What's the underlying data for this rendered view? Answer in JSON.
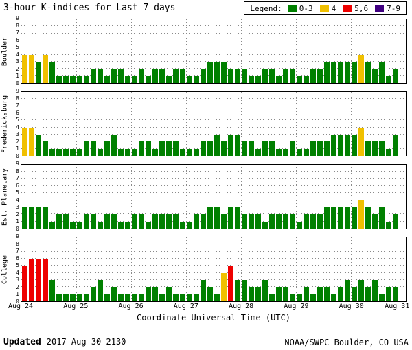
{
  "title": "3-hour K-indices for Last 7 days",
  "legend": {
    "label": "Legend:",
    "items": [
      {
        "label": "0-3",
        "color": "#008000"
      },
      {
        "label": "4",
        "color": "#F0C000"
      },
      {
        "label": "5,6",
        "color": "#EE0000"
      },
      {
        "label": "7-9",
        "color": "#400080"
      }
    ]
  },
  "y_axis": {
    "min": 0,
    "max": 9
  },
  "x_axis": {
    "title": "Coordinate Universal Time (UTC)",
    "tick_labels": [
      "Aug 24",
      "Aug 25",
      "Aug 26",
      "Aug 27",
      "Aug 28",
      "Aug 29",
      "Aug 30",
      "Aug 31"
    ]
  },
  "footer": {
    "updated_label": "Updated",
    "updated_value": "2017 Aug 30 2130",
    "credit": "NOAA/SWPC Boulder, CO USA"
  },
  "chart_data": {
    "type": "bar",
    "title": "3-hour K-indices for Last 7 days",
    "xlabel": "Coordinate Universal Time (UTC)",
    "ylabel": "",
    "ylim": [
      0,
      9
    ],
    "grid": "dotted",
    "legend_position": "top-right",
    "days": 7,
    "bins_per_day": 8,
    "bin_hours": 3,
    "x_start": "Aug 24",
    "x_end": "Aug 31",
    "level_colors": {
      "green": "#008000",
      "yellow": "#F0C000",
      "red": "#EE0000",
      "purple": "#400080"
    },
    "level_bins": {
      "green": "0-3",
      "yellow": "4",
      "red": "5,6",
      "purple": "7-9"
    },
    "panels": [
      {
        "station": "Boulder",
        "values": [
          4,
          4,
          3,
          4,
          3,
          1,
          1,
          1,
          1,
          1,
          2,
          2,
          1,
          2,
          2,
          1,
          1,
          2,
          1,
          2,
          2,
          1,
          2,
          2,
          1,
          1,
          2,
          3,
          3,
          3,
          2,
          2,
          2,
          1,
          1,
          2,
          2,
          1,
          2,
          2,
          1,
          1,
          2,
          2,
          3,
          3,
          3,
          3,
          3,
          4,
          3,
          2,
          3,
          1,
          2
        ]
      },
      {
        "station": "Fredericksburg",
        "values": [
          4,
          4,
          3,
          2,
          1,
          1,
          1,
          1,
          1,
          2,
          2,
          1,
          2,
          3,
          1,
          1,
          1,
          2,
          2,
          1,
          2,
          2,
          2,
          1,
          1,
          1,
          2,
          2,
          3,
          2,
          3,
          3,
          2,
          2,
          1,
          2,
          2,
          1,
          1,
          2,
          1,
          1,
          2,
          2,
          2,
          3,
          3,
          3,
          3,
          4,
          2,
          2,
          2,
          1,
          3
        ]
      },
      {
        "station": "Est. Planetary",
        "values": [
          3,
          3,
          3,
          3,
          1,
          2,
          2,
          1,
          1,
          2,
          2,
          1,
          2,
          2,
          1,
          1,
          2,
          2,
          1,
          2,
          2,
          2,
          2,
          1,
          1,
          2,
          2,
          3,
          3,
          2,
          3,
          3,
          2,
          2,
          2,
          1,
          2,
          2,
          2,
          2,
          1,
          2,
          2,
          2,
          3,
          3,
          3,
          3,
          3,
          4,
          3,
          2,
          3,
          1,
          2
        ]
      },
      {
        "station": "College",
        "values": [
          5,
          6,
          6,
          6,
          3,
          1,
          1,
          1,
          1,
          1,
          2,
          3,
          1,
          2,
          1,
          1,
          1,
          1,
          2,
          2,
          1,
          2,
          1,
          1,
          1,
          1,
          3,
          2,
          1,
          4,
          5,
          3,
          3,
          2,
          2,
          3,
          1,
          2,
          2,
          1,
          1,
          2,
          1,
          2,
          2,
          1,
          2,
          3,
          2,
          3,
          2,
          3,
          1,
          2,
          2
        ]
      }
    ]
  }
}
